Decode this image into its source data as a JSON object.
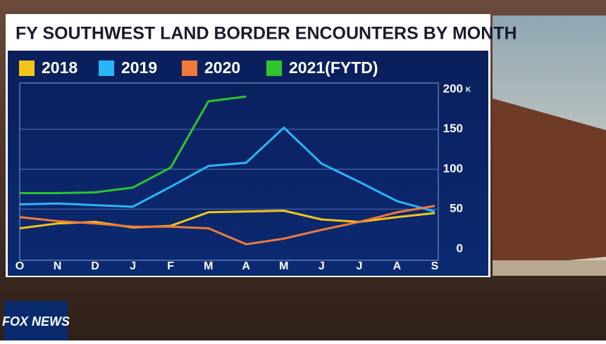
{
  "chart_data": {
    "type": "line",
    "title": "FY SOUTHWEST LAND BORDER ENCOUNTERS BY MONTH",
    "categories": [
      "O",
      "N",
      "D",
      "J",
      "F",
      "M",
      "A",
      "M",
      "J",
      "J",
      "A",
      "S"
    ],
    "series": [
      {
        "name": "2018",
        "color": "#f5c518",
        "values": [
          26,
          32,
          34,
          27,
          29,
          46,
          47,
          48,
          37,
          34,
          40,
          45
        ]
      },
      {
        "name": "2019",
        "color": "#29b6f6",
        "values": [
          56,
          57,
          55,
          53,
          78,
          104,
          108,
          152,
          107,
          84,
          60,
          47
        ]
      },
      {
        "name": "2020",
        "color": "#f07a3a",
        "values": [
          40,
          35,
          32,
          28,
          28,
          26,
          6,
          13,
          24,
          34,
          46,
          54
        ]
      },
      {
        "name": "2021(FYTD)",
        "color": "#2ec52e",
        "values": [
          70,
          70,
          71,
          77,
          102,
          185,
          191,
          null,
          null,
          null,
          null,
          null
        ]
      }
    ],
    "ylim": [
      0,
      200
    ],
    "yticks": [
      0,
      50,
      100,
      150,
      200
    ],
    "y_unit": "K",
    "grid": true,
    "logo": "FOX NEWS"
  }
}
